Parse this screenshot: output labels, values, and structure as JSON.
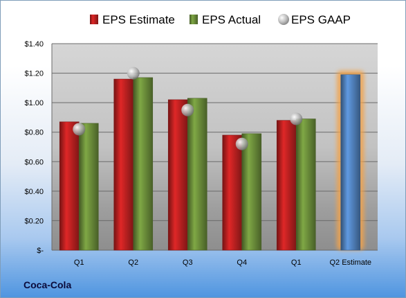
{
  "company_label": "Coca-Cola",
  "colors": {
    "estimate": "#d42525",
    "actual": "#79a042",
    "gaap": "#b8b8b8",
    "q2_estimate": "#5b93d6",
    "q2_estimate_glow": "#f3a34a"
  },
  "chart_data": {
    "type": "bar",
    "categories": [
      "Q1",
      "Q2",
      "Q3",
      "Q4",
      "Q1",
      "Q2 Estimate"
    ],
    "series": [
      {
        "name": "EPS Estimate",
        "values": [
          0.87,
          1.16,
          1.02,
          0.78,
          0.88,
          null
        ]
      },
      {
        "name": "EPS Actual",
        "values": [
          0.86,
          1.17,
          1.03,
          0.79,
          0.89,
          null
        ]
      },
      {
        "name": "EPS GAAP",
        "values": [
          0.82,
          1.2,
          0.95,
          0.72,
          0.89,
          null
        ]
      }
    ],
    "q2_estimate_value": 1.19,
    "ylim": [
      0,
      1.4
    ],
    "yticks": [
      {
        "value": 0,
        "label": "$-"
      },
      {
        "value": 0.2,
        "label": "$0.20"
      },
      {
        "value": 0.4,
        "label": "$0.40"
      },
      {
        "value": 0.6,
        "label": "$0.60"
      },
      {
        "value": 0.8,
        "label": "$0.80"
      },
      {
        "value": 1.0,
        "label": "$1.00"
      },
      {
        "value": 1.2,
        "label": "$1.20"
      },
      {
        "value": 1.4,
        "label": "$1.40"
      }
    ],
    "legend_position": "top",
    "grid": true
  }
}
